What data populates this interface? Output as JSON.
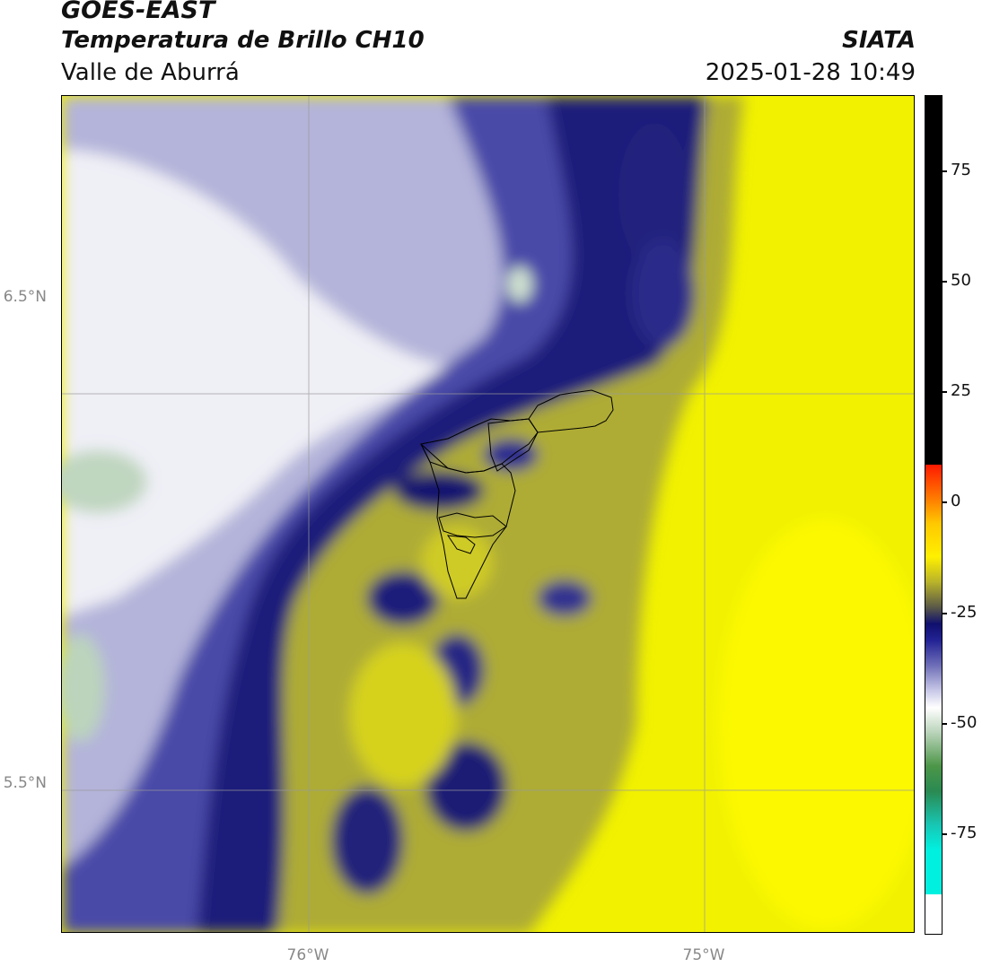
{
  "header": {
    "satellite": "GOES-EAST",
    "product": "Temperatura de Brillo CH10",
    "region": "Valle de Aburrá",
    "organization": "SIATA",
    "timestamp": "2025-01-28 10:49"
  },
  "map": {
    "lat_labels": [
      "6.5°N",
      "5.5°N"
    ],
    "lon_labels": [
      "76°W",
      "75°W"
    ],
    "colors": {
      "warm_yellow": "#f1f100",
      "olive": "#b0ad30",
      "navy": "#14146e",
      "blue": "#3c3ca0",
      "lavender": "#b8b8dc",
      "white": "#f0f0f6",
      "green": "#cfe0cf"
    }
  },
  "colorbar": {
    "labels": [
      "75",
      "50",
      "25",
      "0",
      "-25",
      "-50",
      "-75"
    ]
  }
}
